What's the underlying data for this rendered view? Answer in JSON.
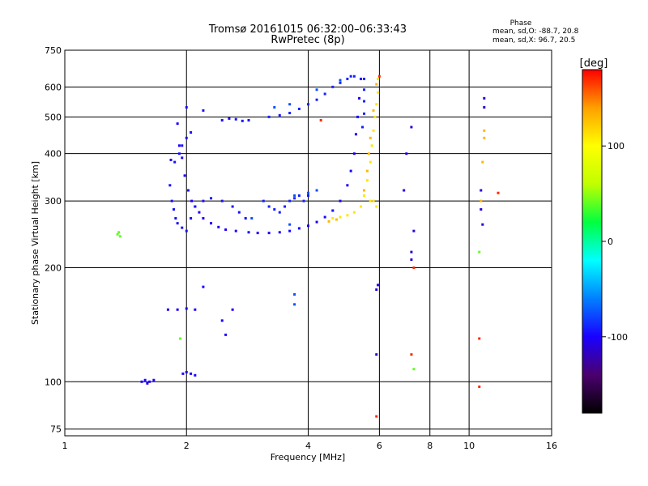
{
  "chart_data": {
    "type": "scatter",
    "title": "Tromsø 20161015 06:32:00–06:33:43",
    "subtitle": "RwPretec (8p)",
    "xlabel": "Frequency [MHz]",
    "ylabel": "Stationary phase Virtual Height [km]",
    "x_scale": "log",
    "y_scale": "log",
    "xlim": [
      1,
      16
    ],
    "ylim": [
      72,
      750
    ],
    "x_ticks": [
      1,
      2,
      4,
      6,
      8,
      10,
      16
    ],
    "y_ticks": [
      75,
      100,
      200,
      300,
      400,
      500,
      600,
      750
    ],
    "grid": true,
    "legend": {
      "title": "Phase",
      "line1": "mean, sd,O: -88.7, 20.8",
      "line2": "mean, sd,X:  96.7, 20.5"
    },
    "colorbar": {
      "unit": "[deg]",
      "range": [
        -180,
        180
      ],
      "ticks": [
        100,
        0,
        -100
      ],
      "tick_labels": [
        "100",
        "0",
        "-100"
      ],
      "colors": [
        "#000000",
        "#4b006e",
        "#1a00ff",
        "#0080ff",
        "#00ffff",
        "#00ff40",
        "#c0ff00",
        "#ffff00",
        "#ffa000",
        "#ff0000"
      ]
    },
    "series": [
      {
        "phase": -100,
        "points": [
          [
            1.55,
            100
          ],
          [
            1.58,
            101
          ],
          [
            1.6,
            99
          ],
          [
            1.62,
            100
          ],
          [
            1.66,
            101
          ],
          [
            1.96,
            105
          ],
          [
            2.0,
            106
          ],
          [
            2.05,
            105
          ],
          [
            2.1,
            104
          ],
          [
            1.8,
            155
          ],
          [
            1.9,
            155
          ],
          [
            2.0,
            156
          ],
          [
            2.1,
            155
          ],
          [
            2.2,
            178
          ],
          [
            2.45,
            145
          ],
          [
            2.5,
            133
          ],
          [
            2.6,
            155
          ]
        ]
      },
      {
        "phase": -100,
        "points": [
          [
            1.9,
            480
          ],
          [
            1.92,
            420
          ],
          [
            1.95,
            390
          ],
          [
            1.98,
            350
          ],
          [
            2.02,
            320
          ],
          [
            2.06,
            300
          ],
          [
            2.1,
            290
          ],
          [
            2.15,
            280
          ],
          [
            2.2,
            270
          ],
          [
            2.3,
            262
          ],
          [
            2.4,
            256
          ],
          [
            2.5,
            252
          ],
          [
            2.65,
            250
          ],
          [
            2.85,
            248
          ],
          [
            3.0,
            247
          ],
          [
            3.2,
            247
          ],
          [
            3.4,
            248
          ],
          [
            3.6,
            250
          ],
          [
            3.8,
            254
          ],
          [
            4.0,
            258
          ],
          [
            4.2,
            264
          ],
          [
            4.4,
            272
          ],
          [
            4.6,
            283
          ],
          [
            4.8,
            300
          ],
          [
            5.0,
            330
          ],
          [
            5.1,
            360
          ],
          [
            5.2,
            400
          ],
          [
            5.25,
            450
          ],
          [
            5.3,
            500
          ],
          [
            5.35,
            560
          ],
          [
            5.4,
            630
          ]
        ]
      },
      {
        "phase": -95,
        "points": [
          [
            1.82,
            330
          ],
          [
            1.84,
            300
          ],
          [
            1.86,
            285
          ],
          [
            1.88,
            270
          ],
          [
            1.9,
            262
          ],
          [
            1.95,
            255
          ],
          [
            2.0,
            250
          ],
          [
            2.05,
            270
          ],
          [
            2.1,
            290
          ],
          [
            2.2,
            300
          ],
          [
            2.3,
            305
          ],
          [
            2.45,
            300
          ],
          [
            2.6,
            290
          ],
          [
            2.7,
            280
          ],
          [
            2.8,
            270
          ],
          [
            1.83,
            385
          ],
          [
            1.87,
            380
          ],
          [
            1.92,
            400
          ],
          [
            1.95,
            420
          ],
          [
            2.0,
            440
          ],
          [
            2.05,
            455
          ],
          [
            2.45,
            490
          ],
          [
            2.55,
            495
          ],
          [
            2.65,
            493
          ],
          [
            2.75,
            488
          ],
          [
            2.85,
            490
          ],
          [
            2.0,
            530
          ],
          [
            2.2,
            520
          ]
        ]
      },
      {
        "phase": -90,
        "points": [
          [
            3.1,
            300
          ],
          [
            3.2,
            290
          ],
          [
            3.3,
            285
          ],
          [
            3.4,
            280
          ],
          [
            3.5,
            290
          ],
          [
            3.6,
            300
          ],
          [
            3.7,
            305
          ],
          [
            3.8,
            310
          ],
          [
            3.9,
            300
          ],
          [
            4.0,
            310
          ],
          [
            3.2,
            500
          ],
          [
            3.4,
            505
          ],
          [
            3.6,
            512
          ],
          [
            3.8,
            525
          ],
          [
            4.0,
            540
          ],
          [
            4.2,
            555
          ],
          [
            4.4,
            575
          ],
          [
            4.6,
            600
          ],
          [
            4.8,
            615
          ],
          [
            5.0,
            630
          ],
          [
            5.1,
            640
          ],
          [
            5.2,
            640
          ],
          [
            5.5,
            630
          ],
          [
            5.5,
            590
          ],
          [
            5.5,
            550
          ],
          [
            5.5,
            510
          ],
          [
            5.45,
            470
          ]
        ]
      },
      {
        "phase": -75,
        "points": [
          [
            3.3,
            530
          ],
          [
            3.6,
            540
          ],
          [
            4.2,
            590
          ],
          [
            4.8,
            625
          ],
          [
            3.7,
            310
          ],
          [
            4.0,
            315
          ],
          [
            4.2,
            320
          ],
          [
            2.9,
            270
          ],
          [
            3.6,
            260
          ],
          [
            3.7,
            170
          ],
          [
            3.7,
            160
          ]
        ]
      },
      {
        "phase": -110,
        "points": [
          [
            5.9,
            118
          ],
          [
            5.95,
            180
          ],
          [
            5.9,
            175
          ],
          [
            7.0,
            400
          ],
          [
            7.2,
            470
          ],
          [
            7.3,
            250
          ],
          [
            7.2,
            220
          ],
          [
            7.2,
            210
          ],
          [
            10.9,
            560
          ],
          [
            10.9,
            530
          ],
          [
            10.7,
            320
          ],
          [
            10.7,
            285
          ],
          [
            10.8,
            260
          ],
          [
            6.9,
            320
          ]
        ]
      },
      {
        "phase": 110,
        "points": [
          [
            4.6,
            270
          ],
          [
            4.8,
            272
          ],
          [
            5.0,
            275
          ],
          [
            5.2,
            280
          ],
          [
            5.4,
            290
          ],
          [
            5.5,
            310
          ],
          [
            5.6,
            340
          ],
          [
            5.7,
            380
          ],
          [
            5.75,
            420
          ],
          [
            5.8,
            460
          ],
          [
            5.85,
            500
          ],
          [
            5.9,
            540
          ],
          [
            5.95,
            580
          ],
          [
            5.95,
            630
          ],
          [
            5.7,
            300
          ],
          [
            5.8,
            300
          ],
          [
            5.9,
            290
          ]
        ]
      },
      {
        "phase": 130,
        "points": [
          [
            4.5,
            265
          ],
          [
            4.7,
            268
          ],
          [
            5.5,
            320
          ],
          [
            5.6,
            360
          ],
          [
            5.65,
            400
          ],
          [
            5.7,
            440
          ],
          [
            5.8,
            520
          ],
          [
            5.9,
            610
          ],
          [
            10.9,
            460
          ],
          [
            10.9,
            440
          ],
          [
            10.8,
            380
          ],
          [
            10.7,
            300
          ]
        ]
      },
      {
        "phase": 170,
        "points": [
          [
            5.9,
            81
          ],
          [
            7.2,
            118
          ],
          [
            7.3,
            200
          ],
          [
            10.6,
            97
          ],
          [
            10.6,
            130
          ],
          [
            11.8,
            315
          ],
          [
            6.0,
            640
          ],
          [
            4.3,
            490
          ]
        ]
      },
      {
        "phase": 40,
        "points": [
          [
            1.35,
            245
          ],
          [
            1.37,
            242
          ],
          [
            1.36,
            248
          ],
          [
            7.3,
            108
          ],
          [
            10.6,
            220
          ],
          [
            1.93,
            130
          ]
        ]
      }
    ]
  }
}
